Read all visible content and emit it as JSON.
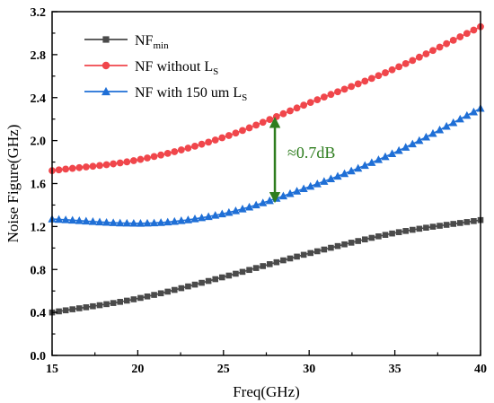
{
  "chart_data": {
    "type": "line",
    "title": "",
    "xlabel": "Freq(GHz)",
    "ylabel": "Noise Figure(GHz)",
    "xlim": [
      15,
      40
    ],
    "ylim": [
      0.0,
      3.2
    ],
    "xticks": [
      15,
      20,
      25,
      30,
      35,
      40
    ],
    "yticks": [
      0.0,
      0.4,
      0.8,
      1.2,
      1.6,
      2.0,
      2.4,
      2.8,
      3.2
    ],
    "xtick_labels": [
      "15",
      "20",
      "25",
      "30",
      "35",
      "40"
    ],
    "ytick_labels": [
      "0.0",
      "0.4",
      "0.8",
      "1.2",
      "1.6",
      "2.0",
      "2.4",
      "2.8",
      "3.2"
    ],
    "grid": false,
    "legend_position": "top-left",
    "series": [
      {
        "key": "nfmin",
        "name_main": "NF",
        "name_sub": "min",
        "color": "#4a4a4a",
        "marker": "square",
        "x": [
          15,
          20,
          25,
          30,
          35,
          40
        ],
        "y": [
          0.4,
          0.53,
          0.73,
          0.95,
          1.14,
          1.26
        ]
      },
      {
        "key": "nf_without",
        "name_main": "NF without L",
        "name_sub": "S",
        "color": "#f0464b",
        "marker": "circle",
        "x": [
          15,
          20,
          25,
          30,
          35,
          40
        ],
        "y": [
          1.72,
          1.82,
          2.03,
          2.35,
          2.67,
          3.06
        ]
      },
      {
        "key": "nf_with",
        "name_main": "NF with 150 um L",
        "name_sub": "S",
        "color": "#1f6fd6",
        "marker": "triangle",
        "x": [
          15,
          20,
          25,
          30,
          35,
          40
        ],
        "y": [
          1.27,
          1.23,
          1.32,
          1.57,
          1.89,
          2.3
        ]
      }
    ],
    "annotation": {
      "text": "≈0.7dB",
      "x": 28,
      "y_top": 2.22,
      "y_bottom": 1.42,
      "color": "#2e7d1e"
    }
  }
}
